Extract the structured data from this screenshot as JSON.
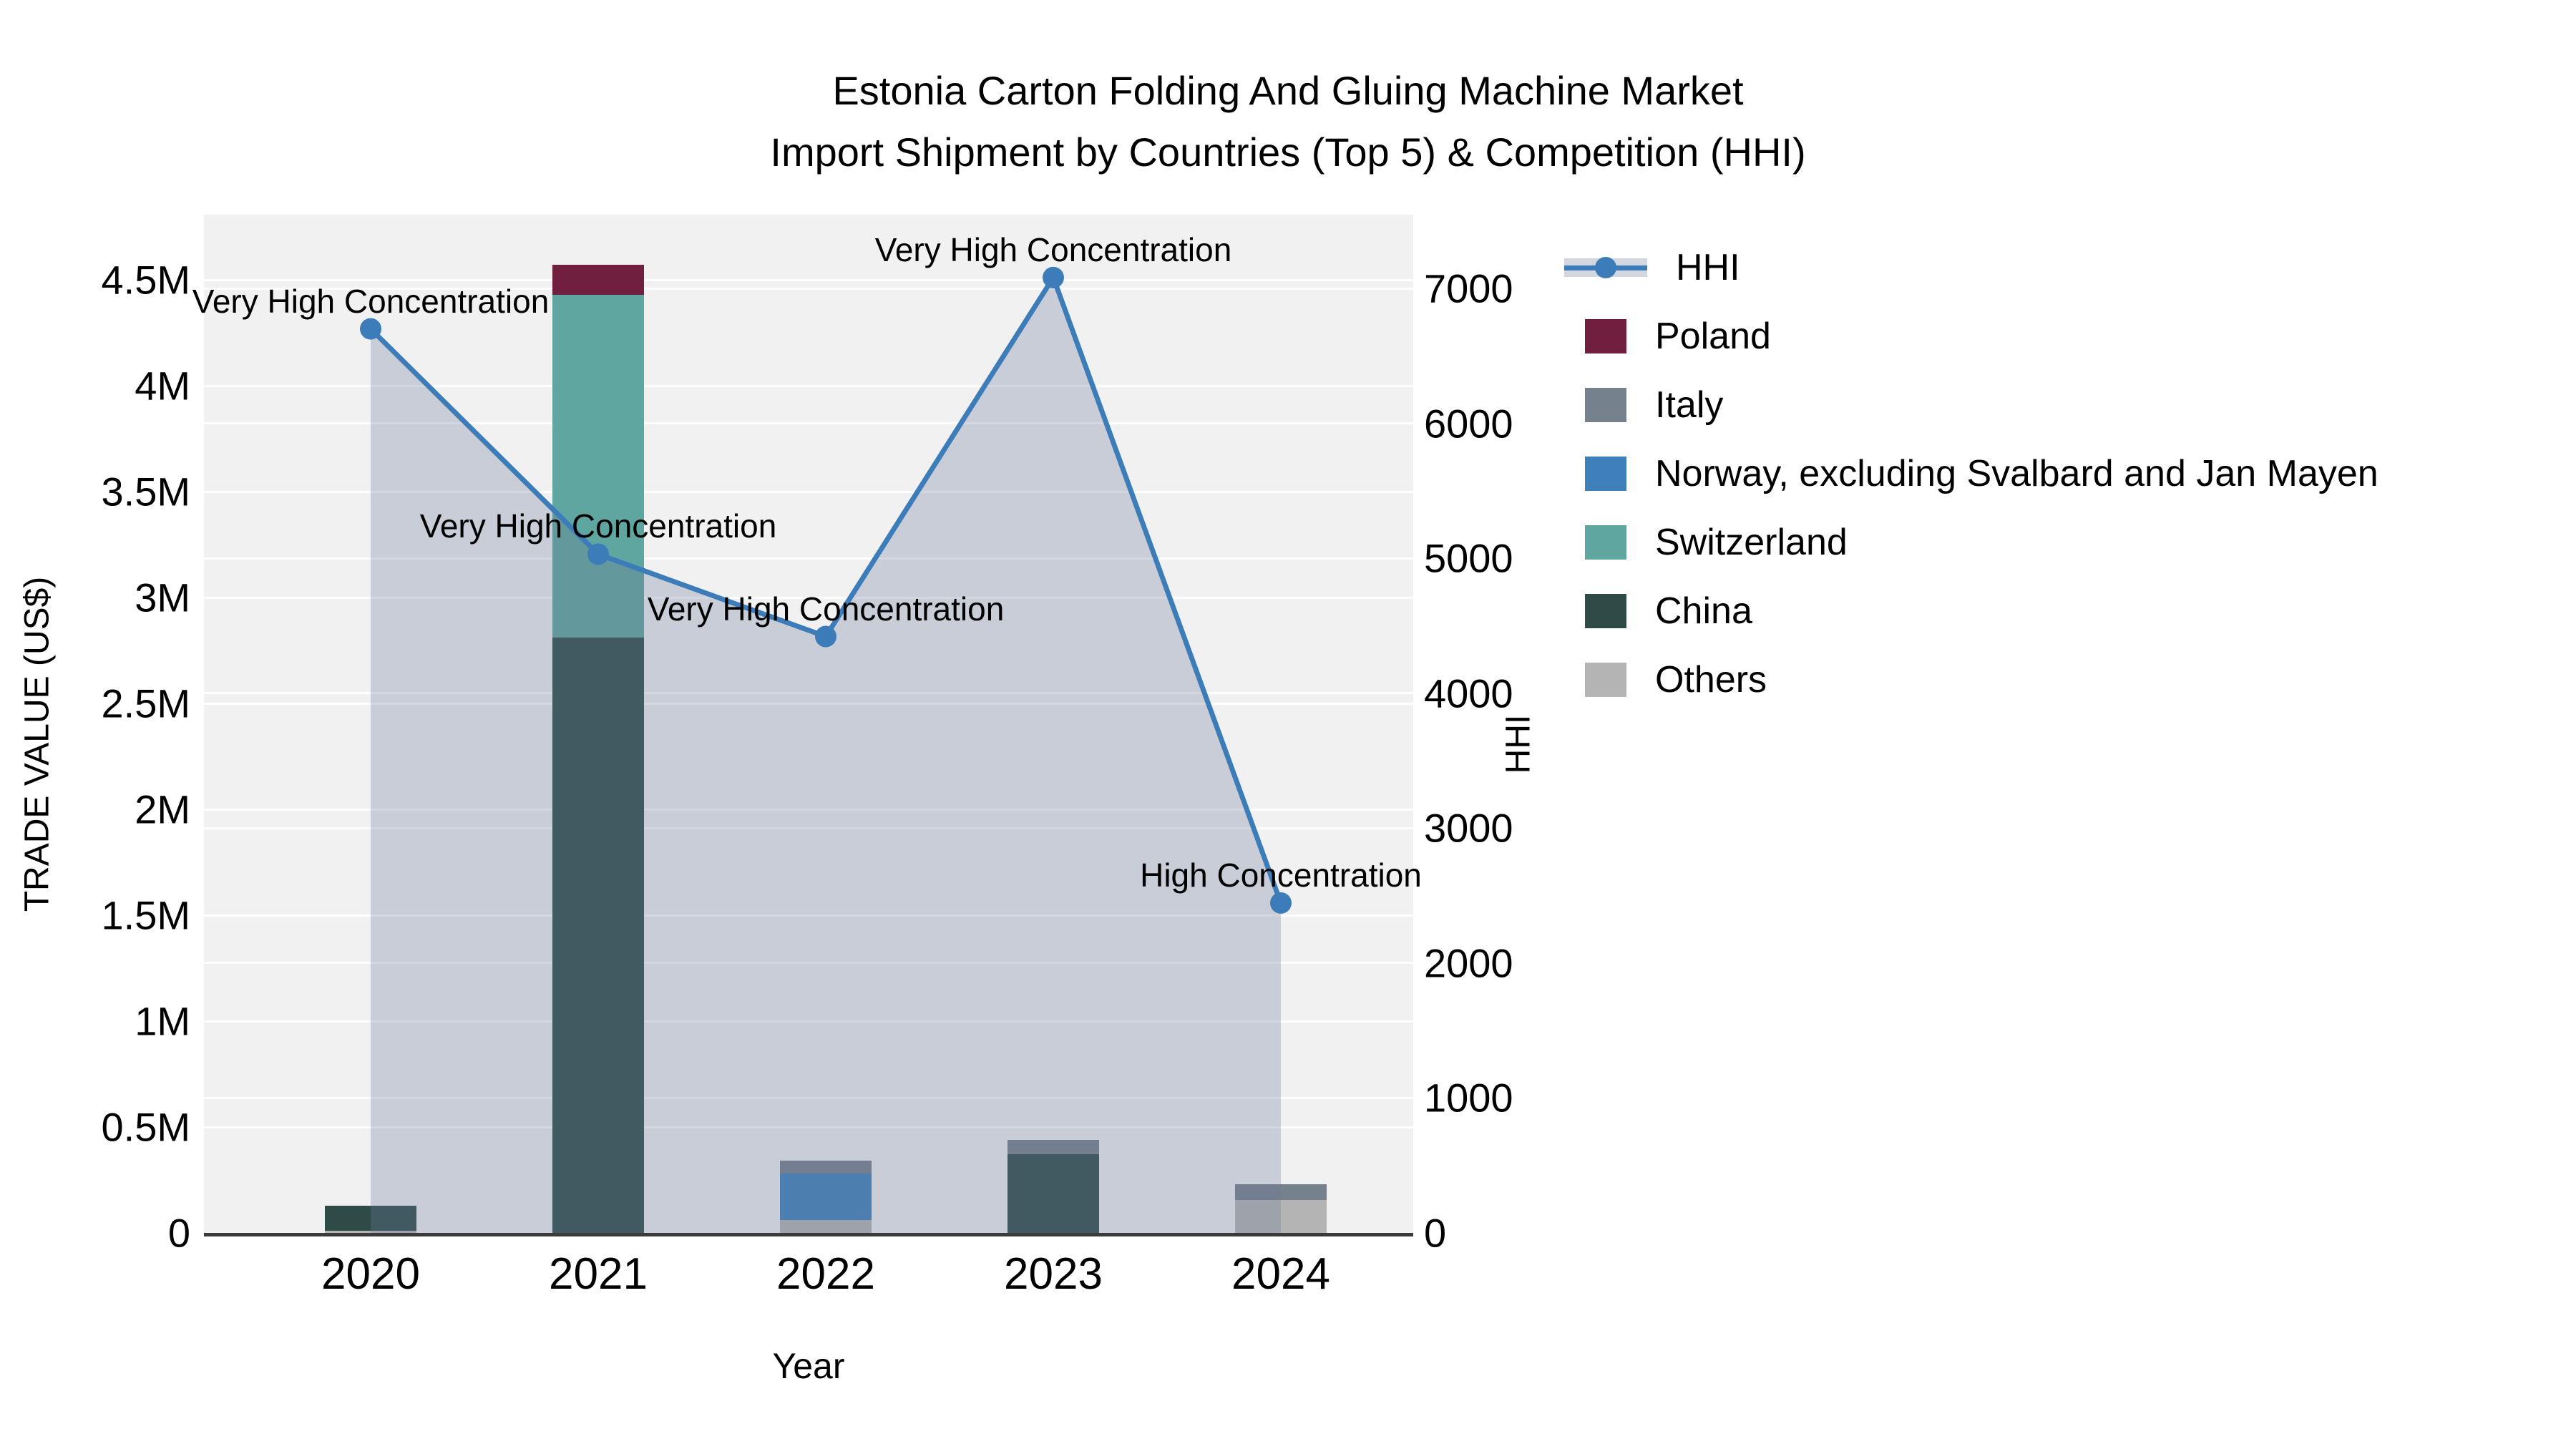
{
  "title": {
    "line1": "Estonia Carton Folding And Gluing Machine Market",
    "line2": "Import Shipment by Countries (Top 5) & Competition (HHI)"
  },
  "axes": {
    "x": {
      "title": "Year",
      "ticks": [
        "2020",
        "2021",
        "2022",
        "2023",
        "2024"
      ]
    },
    "y_left": {
      "title": "TRADE VALUE (US$)",
      "ticks": [
        "0",
        "0.5M",
        "1M",
        "1.5M",
        "2M",
        "2.5M",
        "3M",
        "3.5M",
        "4M",
        "4.5M"
      ],
      "tick_values": [
        0,
        500000,
        1000000,
        1500000,
        2000000,
        2500000,
        3000000,
        3500000,
        4000000,
        4500000
      ]
    },
    "y_right": {
      "title": "HHI",
      "ticks": [
        "0",
        "1000",
        "2000",
        "3000",
        "4000",
        "5000",
        "6000",
        "7000"
      ],
      "tick_values": [
        0,
        1000,
        2000,
        3000,
        4000,
        5000,
        6000,
        7000
      ]
    }
  },
  "colors": {
    "plot_background": "#f1f1f2",
    "gridline": "rgba(255,255,255,0.9)",
    "axis_line": "#3b3b3b",
    "hhi_line": "#3c7cb8",
    "hhi_area_fill": "rgba(108,124,152,0.30)",
    "text": "#000000"
  },
  "chart_data": {
    "type": "bar+line",
    "categories": [
      "2020",
      "2021",
      "2022",
      "2023",
      "2024"
    ],
    "bar_series": [
      {
        "name": "Poland",
        "color": "#701f3e",
        "values": [
          0,
          140000,
          0,
          0,
          0
        ]
      },
      {
        "name": "Italy",
        "color": "#76818e",
        "values": [
          0,
          0,
          60000,
          70000,
          75000
        ]
      },
      {
        "name": "Norway, excluding Svalbard and Jan Mayen",
        "color": "#4080ba",
        "values": [
          0,
          0,
          220000,
          0,
          0
        ]
      },
      {
        "name": "Switzerland",
        "color": "#5fa6a0",
        "values": [
          0,
          1620000,
          0,
          0,
          0
        ]
      },
      {
        "name": "China",
        "color": "#2f4b48",
        "values": [
          120000,
          2810000,
          0,
          370000,
          0
        ]
      },
      {
        "name": "Others",
        "color": "#b4b4b4",
        "values": [
          10000,
          0,
          60000,
          0,
          155000
        ]
      }
    ],
    "stack_order_bottom_to_top": [
      "Others",
      "China",
      "Switzerland",
      "Norway, excluding Svalbard and Jan Mayen",
      "Italy",
      "Poland"
    ],
    "line_series": {
      "name": "HHI",
      "color": "#3c7cb8",
      "values": [
        6700,
        5030,
        4420,
        7080,
        2445
      ]
    },
    "annotations": [
      {
        "category": "2020",
        "text": "Very High Concentration"
      },
      {
        "category": "2021",
        "text": "Very High Concentration"
      },
      {
        "category": "2022",
        "text": "Very High Concentration"
      },
      {
        "category": "2023",
        "text": "Very High Concentration"
      },
      {
        "category": "2024",
        "text": "High Concentration"
      }
    ],
    "ylim_left": [
      0,
      4500000
    ],
    "ylim_right": [
      0,
      7000
    ],
    "grid": true,
    "legend_position": "right",
    "xlabel": "Year",
    "ylabel_left": "TRADE VALUE (US$)",
    "ylabel_right": "HHI"
  }
}
